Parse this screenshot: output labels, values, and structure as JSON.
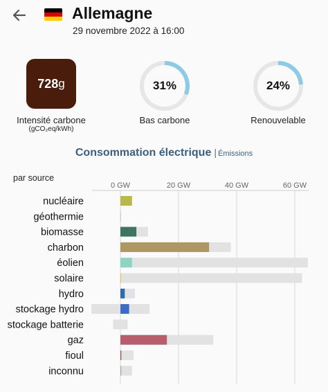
{
  "header": {
    "back_icon": "arrow-left-icon",
    "flag_icon": "germany-flag-icon",
    "flag_colors": [
      "#000000",
      "#dd0000",
      "#ffce00"
    ],
    "zone_name": "Allemagne",
    "datetime": "29 novembre 2022 à 16:00"
  },
  "metrics": {
    "intensity": {
      "value": "728",
      "unit": "g",
      "label": "Intensité carbone",
      "sublabel": "(gCO₂eq/kWh)",
      "color": "#4a1c0c"
    },
    "low_carbon": {
      "value": "31%",
      "fraction": 0.31,
      "label": "Bas carbone"
    },
    "renewable": {
      "value": "24%",
      "fraction": 0.24,
      "label": "Renouvelable"
    },
    "gauge_color": "#8ccbe6",
    "gauge_track_color": "#e6e6e6"
  },
  "tabs": {
    "active": "Consommation électrique",
    "separator": "|",
    "inactive": "Émissions"
  },
  "chart_data": {
    "type": "bar",
    "orientation": "horizontal",
    "title": "par source",
    "xlim": [
      -10,
      60
    ],
    "x_ticks": [
      0,
      20,
      40,
      60
    ],
    "x_tick_labels": [
      "0 GW",
      "20 GW",
      "40 GW",
      "60 GW"
    ],
    "grid": true,
    "categories": [
      "nucléaire",
      "géothermie",
      "biomasse",
      "charbon",
      "éolien",
      "solaire",
      "hydro",
      "stockage hydro",
      "stockage batterie",
      "gaz",
      "fioul",
      "inconnu"
    ],
    "series": [
      {
        "values": [
          4,
          0.1,
          5.5,
          30.5,
          4,
          0.2,
          1.5,
          3,
          0,
          16,
          0.3,
          0.3
        ],
        "colors": [
          "#b8b94c",
          "#d9ccb0",
          "#3f7461",
          "#ac9860",
          "#8fd4c0",
          "#f3c34a",
          "#2b6cb0",
          "#3b6bc3",
          "#b0b8d0",
          "#b65e6b",
          "#8a5a4a",
          "#aaaaaa"
        ]
      },
      {
        "values": [
          4,
          0.1,
          9.5,
          38,
          64.5,
          62.5,
          5,
          10,
          2.5,
          32,
          4.5,
          4
        ],
        "range_min": [
          0,
          0,
          0,
          0,
          0,
          0,
          0,
          -10,
          -2.5,
          0,
          0,
          0
        ],
        "color": "#e2e2e2"
      }
    ]
  }
}
